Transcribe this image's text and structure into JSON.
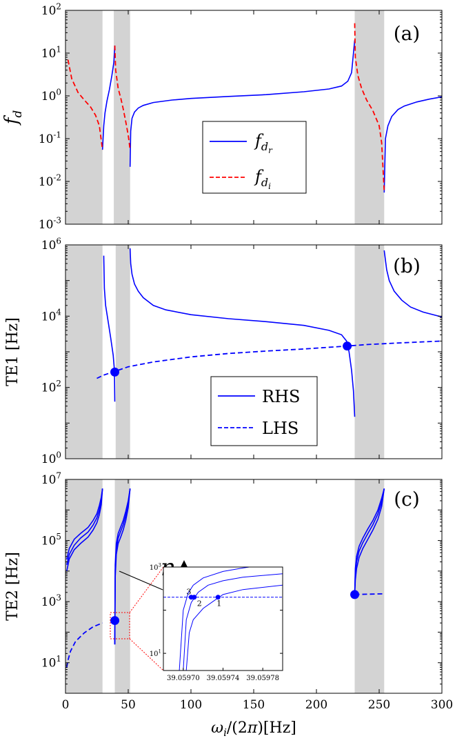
{
  "chart_data": [
    {
      "panel": "(a)",
      "type": "line",
      "ylabel": "f_d",
      "yscale": "log",
      "ylim": [
        0.001,
        100
      ],
      "xlim": [
        0,
        300
      ],
      "yticks": [
        "10^{-3}",
        "10^{-2}",
        "10^{-1}",
        "10^{0}",
        "10^{1}",
        "10^{2}"
      ],
      "shaded_bands": [
        [
          0,
          29.5
        ],
        [
          38.5,
          51.5
        ],
        [
          230.5,
          254
        ]
      ],
      "legend": [
        {
          "label": "f_{d_r}",
          "style": "solid",
          "color": "#0000ff"
        },
        {
          "label": "f_{d_i}",
          "style": "dashed",
          "color": "#ff0000"
        }
      ],
      "series": [
        {
          "name": "f_{d_r}",
          "style": "solid",
          "color": "#0000ff",
          "segments": [
            {
              "x": [
                29.5,
                30.5,
                31.5,
                33,
                35,
                37,
                38.5,
                39.3
              ],
              "y": [
                0.055,
                0.2,
                0.4,
                0.75,
                1.4,
                3,
                6,
                15
              ]
            },
            {
              "x": [
                51.5,
                52,
                53,
                55,
                58,
                62,
                70,
                85,
                100,
                130,
                160,
                190,
                210,
                220,
                225,
                228,
                230.5
              ],
              "y": [
                0.022,
                0.15,
                0.3,
                0.42,
                0.52,
                0.6,
                0.7,
                0.8,
                0.87,
                0.97,
                1.07,
                1.25,
                1.45,
                1.7,
                2.2,
                3.5,
                20
              ]
            },
            {
              "x": [
                254,
                255,
                257,
                260,
                265,
                270,
                280,
                290,
                300
              ],
              "y": [
                0.0055,
                0.1,
                0.2,
                0.33,
                0.48,
                0.58,
                0.72,
                0.84,
                0.95
              ]
            }
          ]
        },
        {
          "name": "f_{d_i}",
          "style": "dashed",
          "color": "#ff0000",
          "segments": [
            {
              "x": [
                2,
                5,
                10,
                15,
                20,
                24,
                27,
                29.5
              ],
              "y": [
                7,
                2.5,
                1.2,
                0.8,
                0.55,
                0.35,
                0.2,
                0.055
              ]
            },
            {
              "x": [
                39.3,
                40,
                42,
                44,
                46,
                48,
                50,
                51.5
              ],
              "y": [
                15,
                4,
                1.5,
                0.9,
                0.5,
                0.25,
                0.12,
                0.055
              ]
            },
            {
              "x": [
                230.5,
                231,
                233,
                236,
                240,
                245,
                250,
                252,
                254
              ],
              "y": [
                50,
                8,
                3,
                1.5,
                0.8,
                0.45,
                0.2,
                0.08,
                0.006
              ]
            }
          ]
        }
      ]
    },
    {
      "panel": "(b)",
      "type": "line",
      "ylabel": "TE1 [Hz]",
      "yscale": "log",
      "ylim": [
        1,
        1000000
      ],
      "xlim": [
        0,
        300
      ],
      "yticks": [
        "10^{0}",
        "10^{2}",
        "10^{4}",
        "10^{6}"
      ],
      "shaded_bands": [
        [
          0,
          29.5
        ],
        [
          40,
          51.5
        ],
        [
          230.5,
          254
        ]
      ],
      "legend": [
        {
          "label": "RHS",
          "style": "solid",
          "color": "#0000ff"
        },
        {
          "label": "LHS",
          "style": "dashed",
          "color": "#0000ff"
        }
      ],
      "series": [
        {
          "name": "RHS",
          "style": "solid",
          "color": "#0000ff",
          "segments": [
            {
              "x": [
                30.5,
                31,
                32,
                34,
                36,
                38,
                39,
                39.3
              ],
              "y": [
                500000,
                60000,
                20000,
                7000,
                2500,
                800,
                300,
                40
              ]
            },
            {
              "x": [
                51.5,
                52,
                53,
                55,
                58,
                62,
                70,
                80,
                100,
                130,
                160,
                190,
                210,
                220,
                224,
                226,
                228,
                229.5,
                230.5
              ],
              "y": [
                800000,
                300000,
                150000,
                80000,
                50000,
                33000,
                20000,
                15000,
                11000,
                8500,
                7000,
                5500,
                4000,
                3000,
                2000,
                1000,
                300,
                80,
                15
              ]
            },
            {
              "x": [
                254,
                256,
                258,
                262,
                268,
                275,
                285,
                300
              ],
              "y": [
                700000,
                200000,
                100000,
                50000,
                28000,
                18000,
                13000,
                9500
              ]
            }
          ]
        },
        {
          "name": "LHS",
          "style": "dashed",
          "color": "#0000ff",
          "segments": [
            {
              "x": [
                25,
                30,
                39,
                50,
                70,
                100,
                130,
                160,
                190,
                224,
                240,
                270,
                300
              ],
              "y": [
                180,
                220,
                280,
                380,
                520,
                720,
                900,
                1050,
                1200,
                1450,
                1600,
                1800,
                2000
              ]
            }
          ]
        }
      ],
      "markers": [
        {
          "x": 39.3,
          "y": 270
        },
        {
          "x": 224.5,
          "y": 1450
        }
      ]
    },
    {
      "panel": "(c)",
      "type": "line",
      "ylabel": "TE2 [Hz]",
      "xlabel": "ω_i/(2π)[Hz]",
      "yscale": "log",
      "ylim": [
        1,
        10000000
      ],
      "xlim": [
        0,
        300
      ],
      "xticks": [
        "0",
        "50",
        "100",
        "150",
        "200",
        "250",
        "300"
      ],
      "yticks": [
        "10^{1}",
        "10^{3}",
        "10^{5}",
        "10^{7}"
      ],
      "shaded_bands": [
        [
          0,
          29.5
        ],
        [
          39.3,
          51.5
        ],
        [
          230.5,
          254
        ]
      ],
      "annotation": "n",
      "series": [
        {
          "name": "",
          "style": "solid",
          "color": "#0000ff",
          "group": "curves",
          "segments": [
            {
              "x": [
                1,
                3,
                7,
                12,
                18,
                22,
                25,
                27,
                28.5,
                29.5
              ],
              "y": [
                10000,
                25000,
                50000,
                80000,
                130000,
                220000,
                380000,
                700000,
                1500000,
                5000000
              ]
            },
            {
              "x": [
                1,
                3,
                7,
                12,
                18,
                22,
                25,
                27,
                28.5,
                29.5
              ],
              "y": [
                16000,
                35000,
                70000,
                120000,
                190000,
                320000,
                550000,
                1000000,
                2000000,
                5000000
              ]
            },
            {
              "x": [
                1,
                3,
                7,
                12,
                18,
                22,
                25,
                27,
                28.5,
                29.5
              ],
              "y": [
                24000,
                55000,
                110000,
                170000,
                270000,
                450000,
                750000,
                1400000,
                2600000,
                5000000
              ]
            },
            {
              "x": [
                39.3,
                39.6,
                40.5,
                42,
                44,
                46,
                48,
                50,
                51.5
              ],
              "y": [
                40,
                6000,
                35000,
                80000,
                130000,
                220000,
                450000,
                1200000,
                5000000
              ]
            },
            {
              "x": [
                39.3,
                39.6,
                40.5,
                42,
                44,
                46,
                48,
                50,
                51.5
              ],
              "y": [
                40,
                10000,
                55000,
                120000,
                200000,
                330000,
                650000,
                1600000,
                5000000
              ]
            },
            {
              "x": [
                39.3,
                39.6,
                40.5,
                42,
                44,
                46,
                48,
                50,
                51.5
              ],
              "y": [
                40,
                16000,
                80000,
                170000,
                280000,
                450000,
                900000,
                2000000,
                5000000
              ]
            },
            {
              "x": [
                230.5,
                231,
                232,
                234,
                237,
                241,
                245,
                249,
                252,
                254
              ],
              "y": [
                1700,
                5000,
                12000,
                28000,
                55000,
                110000,
                220000,
                500000,
                1300000,
                5000000
              ]
            },
            {
              "x": [
                230.5,
                231,
                232,
                234,
                237,
                241,
                245,
                249,
                252,
                254
              ],
              "y": [
                1700,
                8000,
                20000,
                45000,
                85000,
                170000,
                330000,
                750000,
                1800000,
                5000000
              ]
            },
            {
              "x": [
                230.5,
                231,
                232,
                234,
                237,
                241,
                245,
                249,
                252,
                254
              ],
              "y": [
                1700,
                12000,
                30000,
                65000,
                120000,
                240000,
                450000,
                1000000,
                2400000,
                5000000
              ]
            }
          ]
        },
        {
          "name": "",
          "style": "dashed",
          "color": "#0000ff",
          "segments": [
            {
              "x": [
                1,
                2,
                4,
                8,
                15,
                22,
                29.5
              ],
              "y": [
                7,
                12,
                24,
                50,
                95,
                150,
                200
              ]
            },
            {
              "x": [
                230.5,
                240,
                254
              ],
              "y": [
                1700,
                1750,
                1800
              ]
            }
          ]
        }
      ],
      "markers": [
        {
          "x": 39.3,
          "y": 240
        },
        {
          "x": 230.5,
          "y": 1700
        }
      ],
      "inset": {
        "xlim": [
          39.05968,
          39.0598
        ],
        "ylim": [
          4,
          1000
        ],
        "yscale": "log",
        "xticks": [
          "39.05970",
          "39.05974",
          "39.05978"
        ],
        "yticks": [
          "10^{1}",
          "10^{3}"
        ],
        "points": [
          {
            "x": 39.059708,
            "y": 200,
            "label": "3"
          },
          {
            "x": 39.059711,
            "y": 200,
            "label": "2"
          },
          {
            "x": 39.059735,
            "y": 200,
            "label": "1"
          }
        ],
        "curves": [
          {
            "x0": 39.059696,
            "x": [
              39.059696,
              39.0597,
              39.059705,
              39.05971,
              39.05972,
              39.05974,
              39.05976,
              39.0598
            ],
            "y": [
              4,
              100,
              250,
              380,
              560,
              790,
              950,
              1300
            ]
          },
          {
            "x0": 39.0597,
            "x": [
              39.0597,
              39.059703,
              39.059708,
              39.059715,
              39.059725,
              39.05974,
              39.05976,
              39.0598
            ],
            "y": [
              4,
              60,
              150,
              260,
              380,
              480,
              580,
              700
            ]
          },
          {
            "x0": 39.059703,
            "x": [
              39.059703,
              39.059706,
              39.05971,
              39.05972,
              39.05973,
              39.05974,
              39.05976,
              39.0598
            ],
            "y": [
              4,
              30,
              60,
              110,
              160,
              230,
              300,
              380
            ]
          }
        ],
        "dashed_level": 200
      }
    }
  ]
}
